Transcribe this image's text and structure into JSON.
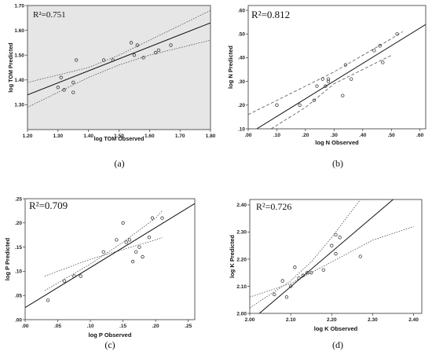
{
  "chart_data": [
    {
      "type": "scatter",
      "panel_label": "(a)",
      "r2_label": "R²=0.751",
      "xlabel": "log TOM Observed",
      "ylabel": "log TOM Predicted",
      "xlim": [
        1.2,
        1.8
      ],
      "ylim": [
        1.2,
        1.7
      ],
      "xticks": [
        1.2,
        1.3,
        1.4,
        1.5,
        1.6,
        1.7,
        1.8
      ],
      "xticklabels": [
        "1.20",
        "1.30",
        "1.40",
        "1.50",
        "1.60",
        "1.70",
        "1.80"
      ],
      "yticks": [
        1.3,
        1.4,
        1.5,
        1.6,
        1.7
      ],
      "yticklabels": [
        "1.30",
        "1.40",
        "1.50",
        "1.60",
        "1.70"
      ],
      "points": [
        [
          1.3,
          1.37
        ],
        [
          1.31,
          1.41
        ],
        [
          1.32,
          1.36
        ],
        [
          1.35,
          1.35
        ],
        [
          1.35,
          1.39
        ],
        [
          1.36,
          1.48
        ],
        [
          1.45,
          1.48
        ],
        [
          1.48,
          1.48
        ],
        [
          1.54,
          1.55
        ],
        [
          1.55,
          1.5
        ],
        [
          1.56,
          1.54
        ],
        [
          1.58,
          1.49
        ],
        [
          1.62,
          1.51
        ],
        [
          1.63,
          1.52
        ],
        [
          1.67,
          1.54
        ]
      ],
      "fit_line": [
        [
          1.2,
          1.34
        ],
        [
          1.8,
          1.63
        ]
      ],
      "ci_upper": [
        [
          1.2,
          1.39
        ],
        [
          1.3,
          1.42
        ],
        [
          1.4,
          1.45
        ],
        [
          1.5,
          1.5
        ],
        [
          1.6,
          1.56
        ],
        [
          1.7,
          1.62
        ],
        [
          1.8,
          1.68
        ]
      ],
      "ci_lower": [
        [
          1.2,
          1.29
        ],
        [
          1.3,
          1.35
        ],
        [
          1.4,
          1.41
        ],
        [
          1.5,
          1.46
        ],
        [
          1.6,
          1.5
        ],
        [
          1.7,
          1.53
        ],
        [
          1.8,
          1.56
        ]
      ],
      "ci_style": "dotted"
    },
    {
      "type": "scatter",
      "panel_label": "(b)",
      "r2_label": "R²=0.812",
      "xlabel": "log N Observed",
      "ylabel": "log N Predicted",
      "xlim": [
        0.0,
        0.62
      ],
      "ylim": [
        0.1,
        0.62
      ],
      "xticks": [
        0.0,
        0.1,
        0.2,
        0.3,
        0.4,
        0.5,
        0.6
      ],
      "xticklabels": [
        ".00",
        ".10",
        ".20",
        ".30",
        ".40",
        ".50",
        ".60"
      ],
      "yticks": [
        0.1,
        0.2,
        0.3,
        0.4,
        0.5,
        0.6
      ],
      "yticklabels": [
        ".10",
        ".20",
        ".30",
        ".40",
        ".50",
        ".60"
      ],
      "points": [
        [
          0.1,
          0.2
        ],
        [
          0.18,
          0.2
        ],
        [
          0.23,
          0.22
        ],
        [
          0.24,
          0.28
        ],
        [
          0.26,
          0.31
        ],
        [
          0.27,
          0.28
        ],
        [
          0.28,
          0.31
        ],
        [
          0.28,
          0.3
        ],
        [
          0.33,
          0.24
        ],
        [
          0.34,
          0.37
        ],
        [
          0.36,
          0.31
        ],
        [
          0.44,
          0.43
        ],
        [
          0.46,
          0.45
        ],
        [
          0.47,
          0.38
        ],
        [
          0.52,
          0.5
        ]
      ],
      "fit_line": [
        [
          0.03,
          0.1
        ],
        [
          0.62,
          0.54
        ]
      ],
      "ci_upper": [
        [
          0.0,
          0.16
        ],
        [
          0.1,
          0.22
        ],
        [
          0.2,
          0.28
        ],
        [
          0.3,
          0.34
        ],
        [
          0.4,
          0.41
        ],
        [
          0.5,
          0.48
        ],
        [
          0.54,
          0.51
        ]
      ],
      "ci_lower": [
        [
          0.08,
          0.1
        ],
        [
          0.2,
          0.19
        ],
        [
          0.3,
          0.29
        ],
        [
          0.4,
          0.35
        ],
        [
          0.5,
          0.41
        ]
      ],
      "ci_style": "dashed"
    },
    {
      "type": "scatter",
      "panel_label": "(c)",
      "r2_label": "R²=0.709",
      "xlabel": "log P Observed",
      "ylabel": "log P Predicted",
      "xlim": [
        0.0,
        0.26
      ],
      "ylim": [
        0.0,
        0.25
      ],
      "xticks": [
        0.0,
        0.05,
        0.1,
        0.15,
        0.2,
        0.25
      ],
      "xticklabels": [
        ".00",
        ".05",
        ".10",
        ".15",
        ".20",
        ".25"
      ],
      "yticks": [
        0.0,
        0.05,
        0.1,
        0.15,
        0.2,
        0.25
      ],
      "yticklabels": [
        ".00",
        ".05",
        ".10",
        ".15",
        ".20",
        ".25"
      ],
      "points": [
        [
          0.035,
          0.04
        ],
        [
          0.06,
          0.08
        ],
        [
          0.075,
          0.09
        ],
        [
          0.085,
          0.09
        ],
        [
          0.12,
          0.14
        ],
        [
          0.14,
          0.165
        ],
        [
          0.15,
          0.2
        ],
        [
          0.155,
          0.16
        ],
        [
          0.16,
          0.165
        ],
        [
          0.165,
          0.12
        ],
        [
          0.17,
          0.14
        ],
        [
          0.175,
          0.15
        ],
        [
          0.18,
          0.13
        ],
        [
          0.19,
          0.17
        ],
        [
          0.195,
          0.21
        ],
        [
          0.21,
          0.21
        ]
      ],
      "fit_line": [
        [
          0.0,
          0.025
        ],
        [
          0.26,
          0.24
        ]
      ],
      "ci_upper": [
        [
          0.03,
          0.06
        ],
        [
          0.1,
          0.115
        ],
        [
          0.15,
          0.16
        ],
        [
          0.2,
          0.21
        ],
        [
          0.21,
          0.225
        ]
      ],
      "ci_lower": [
        [
          0.03,
          0.09
        ],
        [
          0.1,
          0.125
        ],
        [
          0.15,
          0.145
        ],
        [
          0.2,
          0.165
        ],
        [
          0.21,
          0.17
        ]
      ],
      "ci_style": "dotted"
    },
    {
      "type": "scatter",
      "panel_label": "(d)",
      "r2_label": "R²=0.726",
      "xlabel": "log K Observed",
      "ylabel": "log K Predicted",
      "xlim": [
        2.0,
        2.42
      ],
      "ylim": [
        2.0,
        2.42
      ],
      "xticks": [
        2.0,
        2.1,
        2.2,
        2.3,
        2.4
      ],
      "xticklabels": [
        "2.00",
        "2.10",
        "2.20",
        "2.30",
        "2.40"
      ],
      "yticks": [
        2.0,
        2.1,
        2.2,
        2.3,
        2.4
      ],
      "yticklabels": [
        "2.00",
        "2.10",
        "2.20",
        "2.30",
        "2.40"
      ],
      "points": [
        [
          2.06,
          2.07
        ],
        [
          2.08,
          2.12
        ],
        [
          2.09,
          2.06
        ],
        [
          2.1,
          2.1
        ],
        [
          2.11,
          2.17
        ],
        [
          2.12,
          2.13
        ],
        [
          2.13,
          2.14
        ],
        [
          2.14,
          2.15
        ],
        [
          2.15,
          2.15
        ],
        [
          2.18,
          2.16
        ],
        [
          2.2,
          2.25
        ],
        [
          2.21,
          2.22
        ],
        [
          2.21,
          2.29
        ],
        [
          2.22,
          2.28
        ],
        [
          2.27,
          2.21
        ]
      ],
      "fit_line": [
        [
          2.0,
          1.97
        ],
        [
          2.35,
          2.42
        ]
      ],
      "ci_upper": [
        [
          2.0,
          2.02
        ],
        [
          2.1,
          2.12
        ],
        [
          2.15,
          2.19
        ],
        [
          2.2,
          2.28
        ],
        [
          2.25,
          2.38
        ],
        [
          2.27,
          2.42
        ]
      ],
      "ci_lower": [
        [
          2.0,
          2.06
        ],
        [
          2.1,
          2.11
        ],
        [
          2.15,
          2.15
        ],
        [
          2.2,
          2.19
        ],
        [
          2.3,
          2.27
        ],
        [
          2.4,
          2.32
        ]
      ],
      "ci_style": "dotted"
    }
  ]
}
